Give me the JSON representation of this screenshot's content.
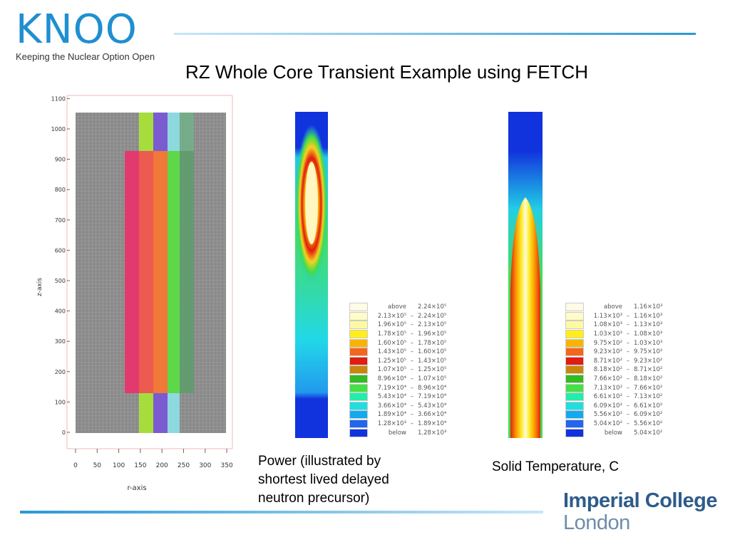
{
  "header": {
    "logo_text": "KNOO",
    "logo_tagline": "Keeping the Nuclear Option Open",
    "title": "RZ Whole Core Transient Example using FETCH"
  },
  "geometry_plot": {
    "xlabel": "r-axis",
    "ylabel": "z-axis",
    "x_ticks": [
      "0",
      "50",
      "100",
      "150",
      "200",
      "250",
      "300",
      "350"
    ],
    "y_ticks": [
      "0",
      "100",
      "200",
      "300",
      "400",
      "500",
      "600",
      "700",
      "800",
      "900",
      "1000",
      "1100"
    ]
  },
  "power_legend": [
    [
      "above",
      "2.24×10⁵"
    ],
    [
      "2.13×10⁵",
      "2.24×10⁵"
    ],
    [
      "1.96×10⁵",
      "2.13×10⁵"
    ],
    [
      "1.78×10⁵",
      "1.96×10⁵"
    ],
    [
      "1.60×10⁵",
      "1.78×10⁵"
    ],
    [
      "1.43×10⁵",
      "1.60×10⁵"
    ],
    [
      "1.25×10⁵",
      "1.43×10⁵"
    ],
    [
      "1.07×10⁵",
      "1.25×10⁵"
    ],
    [
      "8.96×10⁴",
      "1.07×10⁵"
    ],
    [
      "7.19×10⁴",
      "8.96×10⁴"
    ],
    [
      "5.43×10⁴",
      "7.19×10⁴"
    ],
    [
      "3.66×10⁴",
      "5.43×10⁴"
    ],
    [
      "1.89×10⁴",
      "3.66×10⁴"
    ],
    [
      "1.28×10³",
      "1.89×10⁴"
    ],
    [
      "below",
      "1.28×10³"
    ]
  ],
  "temperature_legend": [
    [
      "above",
      "1.16×10³"
    ],
    [
      "1.13×10³",
      "1.16×10³"
    ],
    [
      "1.08×10³",
      "1.13×10³"
    ],
    [
      "1.03×10³",
      "1.08×10³"
    ],
    [
      "9.75×10²",
      "1.03×10³"
    ],
    [
      "9.23×10²",
      "9.75×10²"
    ],
    [
      "8.71×10²",
      "9.23×10²"
    ],
    [
      "8.18×10²",
      "8.71×10²"
    ],
    [
      "7.66×10²",
      "8.18×10²"
    ],
    [
      "7.13×10²",
      "7.66×10²"
    ],
    [
      "6.61×10²",
      "7.13×10²"
    ],
    [
      "6.09×10²",
      "6.61×10²"
    ],
    [
      "5.56×10²",
      "6.09×10²"
    ],
    [
      "5.04×10²",
      "5.56×10²"
    ],
    [
      "below",
      "5.04×10²"
    ]
  ],
  "legend_colors": [
    "#fffbe6",
    "#fffcc8",
    "#fff9a0",
    "#ffee1a",
    "#f8b400",
    "#f4661a",
    "#e41b10",
    "#c8860a",
    "#33bb22",
    "#44e044",
    "#22eeaa",
    "#22dddd",
    "#11aaee",
    "#2266ee",
    "#1133dd"
  ],
  "captions": {
    "power_line1": "Power (illustrated by",
    "power_line2": "shortest lived delayed",
    "power_line3": "neutron precursor)",
    "temperature": "Solid Temperature, C"
  },
  "footer": {
    "institution_line1": "Imperial College",
    "institution_line2": "London"
  }
}
